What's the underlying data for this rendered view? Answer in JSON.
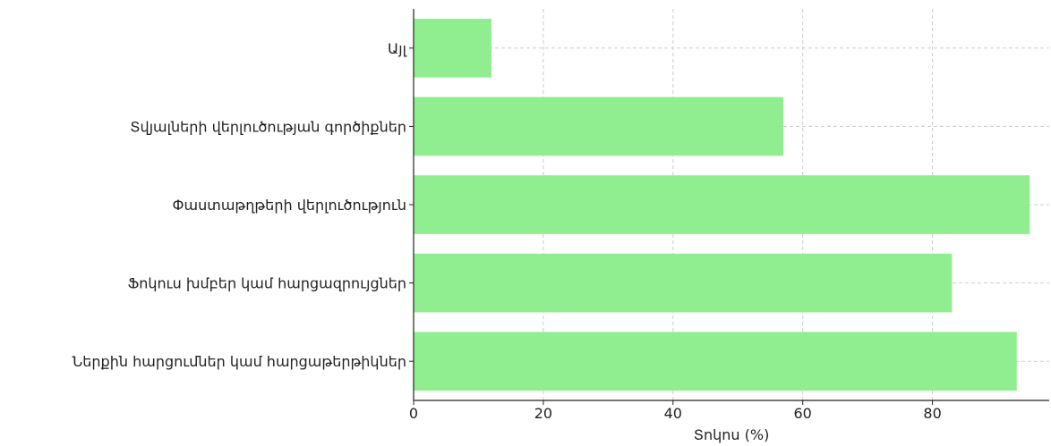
{
  "chart_data": {
    "type": "bar",
    "orientation": "horizontal",
    "categories": [
      "Ներքին հարցումներ կամ հարցաթերթիկներ",
      "Ֆոկուս խմբեր կամ հարցազրույցներ",
      "Փաստաթղթերի վերլուծություն",
      "Տվյալների վերլուծության գործիքներ",
      "Այլ"
    ],
    "values": [
      93,
      83,
      95,
      57,
      12
    ],
    "xlabel": "Տոկոս (%)",
    "ylabel": "",
    "xlim": [
      0,
      98
    ],
    "xticks": [
      0,
      20,
      40,
      60,
      80
    ],
    "grid": true,
    "bar_color": "#90ee90"
  }
}
